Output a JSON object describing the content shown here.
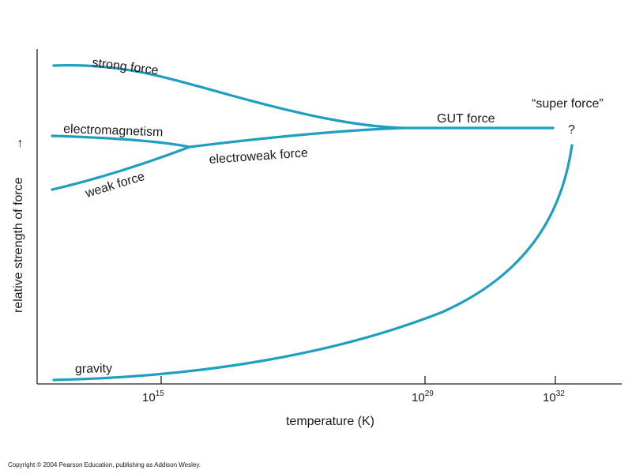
{
  "colors": {
    "curve": "#1f9fbf",
    "axis": "#222222",
    "text": "#1a1a1a",
    "background": "#ffffff"
  },
  "curves": {
    "strong_force": "strong force",
    "electromagnetism": "electromagnetism",
    "weak_force": "weak force",
    "electroweak_force": "electroweak force",
    "gut_force": "GUT force",
    "super_force": "“super force”",
    "super_force_mark": "?",
    "gravity": "gravity"
  },
  "axes": {
    "x_label": "temperature (K)",
    "y_label": "relative strength of force",
    "y_arrow": "→",
    "ticks": [
      {
        "base": "10",
        "exponent": "15"
      },
      {
        "base": "10",
        "exponent": "29"
      },
      {
        "base": "10",
        "exponent": "32"
      }
    ]
  },
  "copyright": "Copyright © 2004 Pearson Education, publishing as Addison Wesley."
}
